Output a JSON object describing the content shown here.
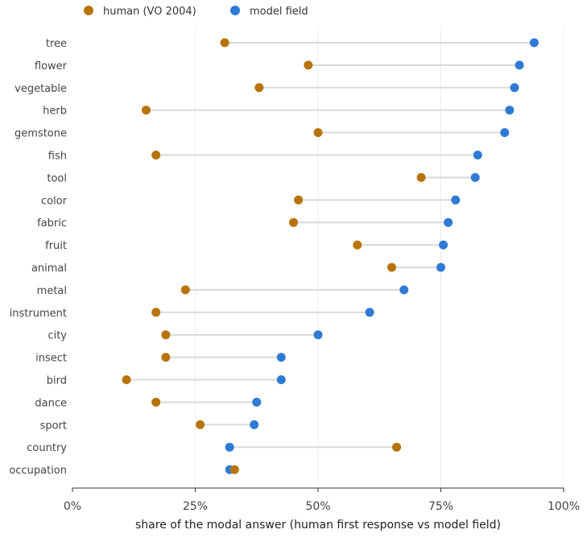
{
  "chart_data": {
    "type": "dumbbell",
    "xlabel": "share of the modal answer  (human first response vs model field)",
    "xlim": [
      0,
      100
    ],
    "x_ticks": [
      0,
      25,
      50,
      75,
      100
    ],
    "x_tick_labels": [
      "0%",
      "25%",
      "50%",
      "75%",
      "100%"
    ],
    "grid": "vertical",
    "legend_position": "top-left",
    "series": [
      {
        "name": "human (VO 2004)",
        "color": "#b8730a"
      },
      {
        "name": "model field",
        "color": "#2e7ad6"
      }
    ],
    "connector_color": "#d9d9d9",
    "categories": [
      "tree",
      "flower",
      "vegetable",
      "herb",
      "gemstone",
      "fish",
      "tool",
      "color",
      "fabric",
      "fruit",
      "animal",
      "metal",
      "instrument",
      "city",
      "insect",
      "bird",
      "dance",
      "sport",
      "country",
      "occupation"
    ],
    "human": [
      31,
      48,
      38,
      15,
      50,
      17,
      71,
      46,
      45,
      58,
      65,
      23,
      17,
      19,
      19,
      11,
      17,
      26,
      66,
      33
    ],
    "model": [
      94,
      91,
      90,
      89,
      88,
      82.5,
      82,
      78,
      76.5,
      75.5,
      75,
      67.5,
      60.5,
      50,
      42.5,
      42.5,
      37.5,
      37,
      32,
      32
    ]
  }
}
